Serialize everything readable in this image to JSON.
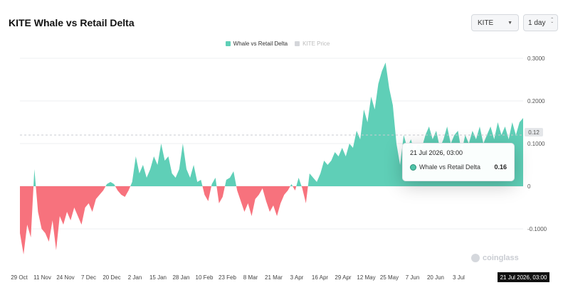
{
  "header": {
    "title": "KITE Whale vs Retail Delta",
    "symbol_select": "KITE",
    "interval_select": "1 day"
  },
  "legend": {
    "series_label": "Whale vs Retail Delta",
    "price_label": "KITE Price"
  },
  "tooltip": {
    "date": "21 Jul 2026, 03:00",
    "series_label": "Whale vs Retail Delta",
    "value": "0.16"
  },
  "crosshair": {
    "x_label": "21 Jul 2026, 03:00",
    "y_label": "0.12"
  },
  "watermark": "coinglass",
  "colors": {
    "positive": "#5fcfb7",
    "negative": "#f7727d",
    "grid": "#eeeff1"
  },
  "chart_data": {
    "type": "area",
    "title": "KITE Whale vs Retail Delta",
    "series": [
      {
        "name": "Whale vs Retail Delta"
      }
    ],
    "x_ticks": [
      "29 Oct",
      "11 Nov",
      "24 Nov",
      "7 Dec",
      "20 Dec",
      "2 Jan",
      "15 Jan",
      "28 Jan",
      "10 Feb",
      "23 Feb",
      "8 Mar",
      "21 Mar",
      "3 Apr",
      "16 Apr",
      "29 Apr",
      "12 May",
      "25 May",
      "7 Jun",
      "20 Jun",
      "3 Jul"
    ],
    "y_ticks": [
      "0.3000",
      "0.2000",
      "0.1000",
      "0",
      "-0.1000"
    ],
    "y_tick_values": [
      0.3,
      0.2,
      0.1,
      0,
      -0.1
    ],
    "ylim": [
      -0.17,
      0.31
    ],
    "grid": true,
    "legend_position": "top-center",
    "points": [
      [
        "29 Oct",
        -0.11
      ],
      [
        "30 Oct",
        -0.16
      ],
      [
        "31 Oct",
        -0.09
      ],
      [
        "2 Nov",
        -0.12
      ],
      [
        "3 Nov",
        0.04
      ],
      [
        "4 Nov",
        -0.06
      ],
      [
        "6 Nov",
        -0.1
      ],
      [
        "8 Nov",
        -0.11
      ],
      [
        "9 Nov",
        -0.13
      ],
      [
        "11 Nov",
        -0.08
      ],
      [
        "12 Nov",
        -0.15
      ],
      [
        "14 Nov",
        -0.07
      ],
      [
        "16 Nov",
        -0.09
      ],
      [
        "18 Nov",
        -0.06
      ],
      [
        "20 Nov",
        -0.08
      ],
      [
        "22 Nov",
        -0.05
      ],
      [
        "24 Nov",
        -0.07
      ],
      [
        "26 Nov",
        -0.09
      ],
      [
        "28 Nov",
        -0.05
      ],
      [
        "30 Nov",
        -0.04
      ],
      [
        "2 Dec",
        -0.06
      ],
      [
        "4 Dec",
        -0.03
      ],
      [
        "6 Dec",
        -0.02
      ],
      [
        "8 Dec",
        -0.01
      ],
      [
        "10 Dec",
        0.005
      ],
      [
        "12 Dec",
        0.01
      ],
      [
        "14 Dec",
        0.005
      ],
      [
        "16 Dec",
        -0.01
      ],
      [
        "18 Dec",
        -0.02
      ],
      [
        "20 Dec",
        -0.025
      ],
      [
        "22 Dec",
        -0.01
      ],
      [
        "24 Dec",
        0.01
      ],
      [
        "25 Dec",
        0.07
      ],
      [
        "27 Dec",
        0.03
      ],
      [
        "29 Dec",
        0.05
      ],
      [
        "31 Dec",
        0.02
      ],
      [
        "2 Jan",
        0.04
      ],
      [
        "4 Jan",
        0.07
      ],
      [
        "5 Jan",
        0.05
      ],
      [
        "7 Jan",
        0.1
      ],
      [
        "9 Jan",
        0.06
      ],
      [
        "11 Jan",
        0.07
      ],
      [
        "13 Jan",
        0.03
      ],
      [
        "15 Jan",
        0.02
      ],
      [
        "17 Jan",
        0.04
      ],
      [
        "18 Jan",
        0.1
      ],
      [
        "20 Jan",
        0.04
      ],
      [
        "22 Jan",
        0.02
      ],
      [
        "24 Jan",
        0.05
      ],
      [
        "26 Jan",
        0.01
      ],
      [
        "28 Jan",
        0.015
      ],
      [
        "30 Jan",
        -0.02
      ],
      [
        "1 Feb",
        -0.035
      ],
      [
        "3 Feb",
        0.005
      ],
      [
        "5 Feb",
        0.02
      ],
      [
        "7 Feb",
        -0.04
      ],
      [
        "8 Feb",
        -0.025
      ],
      [
        "10 Feb",
        0.015
      ],
      [
        "12 Feb",
        0.02
      ],
      [
        "14 Feb",
        0.035
      ],
      [
        "16 Feb",
        -0.01
      ],
      [
        "18 Feb",
        -0.035
      ],
      [
        "20 Feb",
        -0.06
      ],
      [
        "22 Feb",
        -0.04
      ],
      [
        "24 Feb",
        -0.07
      ],
      [
        "26 Feb",
        -0.03
      ],
      [
        "28 Feb",
        -0.02
      ],
      [
        "2 Mar",
        -0.005
      ],
      [
        "4 Mar",
        -0.035
      ],
      [
        "6 Mar",
        -0.06
      ],
      [
        "8 Mar",
        -0.045
      ],
      [
        "10 Mar",
        -0.07
      ],
      [
        "12 Mar",
        -0.04
      ],
      [
        "14 Mar",
        -0.02
      ],
      [
        "16 Mar",
        -0.01
      ],
      [
        "18 Mar",
        0.005
      ],
      [
        "20 Mar",
        -0.01
      ],
      [
        "22 Mar",
        0.02
      ],
      [
        "24 Mar",
        -0.005
      ],
      [
        "25 Mar",
        -0.04
      ],
      [
        "27 Mar",
        0.03
      ],
      [
        "29 Mar",
        0.02
      ],
      [
        "31 Mar",
        0.01
      ],
      [
        "2 Apr",
        0.03
      ],
      [
        "4 Apr",
        0.06
      ],
      [
        "6 Apr",
        0.05
      ],
      [
        "8 Apr",
        0.06
      ],
      [
        "10 Apr",
        0.08
      ],
      [
        "12 Apr",
        0.07
      ],
      [
        "14 Apr",
        0.09
      ],
      [
        "16 Apr",
        0.07
      ],
      [
        "18 Apr",
        0.1
      ],
      [
        "20 Apr",
        0.09
      ],
      [
        "21 Apr",
        0.13
      ],
      [
        "23 Apr",
        0.11
      ],
      [
        "25 Apr",
        0.18
      ],
      [
        "27 Apr",
        0.15
      ],
      [
        "29 Apr",
        0.21
      ],
      [
        "1 May",
        0.18
      ],
      [
        "3 May",
        0.24
      ],
      [
        "5 May",
        0.27
      ],
      [
        "6 May",
        0.29
      ],
      [
        "8 May",
        0.23
      ],
      [
        "10 May",
        0.19
      ],
      [
        "12 May",
        0.1
      ],
      [
        "14 May",
        0.05
      ],
      [
        "16 May",
        0.12
      ],
      [
        "18 May",
        0.09
      ],
      [
        "20 May",
        0.11
      ],
      [
        "22 May",
        0.08
      ],
      [
        "24 May",
        0.1
      ],
      [
        "26 May",
        0.09
      ],
      [
        "28 May",
        0.12
      ],
      [
        "30 May",
        0.14
      ],
      [
        "1 Jun",
        0.11
      ],
      [
        "3 Jun",
        0.13
      ],
      [
        "5 Jun",
        0.09
      ],
      [
        "7 Jun",
        0.11
      ],
      [
        "9 Jun",
        0.14
      ],
      [
        "11 Jun",
        0.1
      ],
      [
        "13 Jun",
        0.12
      ],
      [
        "15 Jun",
        0.13
      ],
      [
        "17 Jun",
        0.08
      ],
      [
        "19 Jun",
        0.12
      ],
      [
        "21 Jun",
        0.1
      ],
      [
        "23 Jun",
        0.13
      ],
      [
        "25 Jun",
        0.11
      ],
      [
        "27 Jun",
        0.14
      ],
      [
        "29 Jun",
        0.1
      ],
      [
        "1 Jul",
        0.12
      ],
      [
        "3 Jul",
        0.14
      ],
      [
        "5 Jul",
        0.11
      ],
      [
        "7 Jul",
        0.15
      ],
      [
        "9 Jul",
        0.12
      ],
      [
        "11 Jul",
        0.14
      ],
      [
        "13 Jul",
        0.11
      ],
      [
        "15 Jul",
        0.15
      ],
      [
        "17 Jul",
        0.12
      ],
      [
        "19 Jul",
        0.15
      ],
      [
        "21 Jul",
        0.16
      ]
    ]
  }
}
